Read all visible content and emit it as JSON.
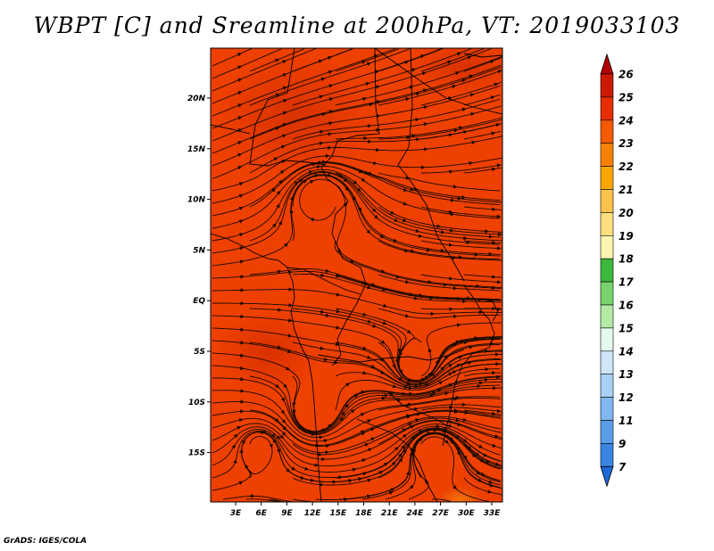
{
  "title": "WBPT [C] and Sreamline at 200hPa, VT: 2019033103",
  "credit": "GrADS: IGES/COLA",
  "map": {
    "lon_ticks": [
      "3E",
      "6E",
      "9E",
      "12E",
      "15E",
      "18E",
      "21E",
      "24E",
      "27E",
      "30E",
      "33E"
    ],
    "lat_ticks": [
      "20N",
      "15N",
      "10N",
      "5N",
      "EQ",
      "5S",
      "10S",
      "15S"
    ],
    "background_color": "#ee4000",
    "field_variable": "WBPT",
    "level": "200hPa",
    "dominant_value_range": [
      23,
      25
    ]
  },
  "colorbar": {
    "labels": [
      "26",
      "25",
      "24",
      "23",
      "22",
      "21",
      "20",
      "19",
      "18",
      "17",
      "16",
      "15",
      "14",
      "13",
      "12",
      "11",
      "9",
      "7"
    ],
    "colors": [
      "#b30000",
      "#cc1a00",
      "#e62e00",
      "#f55a00",
      "#f88100",
      "#fba700",
      "#fdc24c",
      "#ffde7f",
      "#fff5b0",
      "#3cb83c",
      "#78d26e",
      "#b4eba4",
      "#e6f9ef",
      "#cfe6f9",
      "#a9d1f7",
      "#82b8f0",
      "#5a9eea",
      "#3a84e2",
      "#1f68d8"
    ],
    "extend": "both"
  }
}
